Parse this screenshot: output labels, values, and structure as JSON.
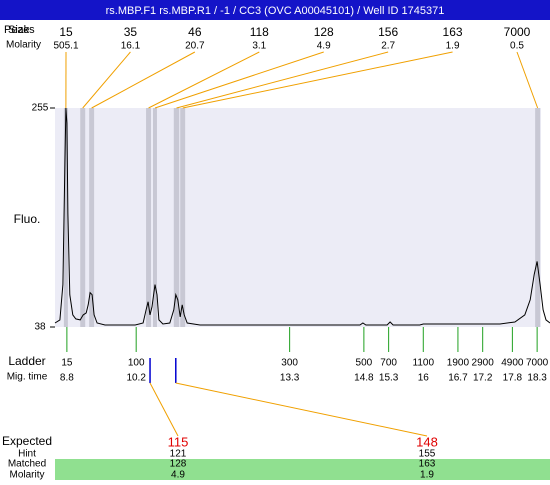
{
  "header": {
    "title": "rs.MBP.F1  rs.MBP.R1  / -1  / CC3 (OVC A00045101) / Well ID 1745371"
  },
  "chart_data": {
    "type": "line",
    "x": [
      8.56,
      8.66,
      8.72,
      8.76,
      8.78,
      8.8,
      8.82,
      8.86,
      8.92,
      8.98,
      9.07,
      9.13,
      9.19,
      9.23,
      9.27,
      9.31,
      9.35,
      9.41,
      9.57,
      9.87,
      10.18,
      10.34,
      10.4,
      10.44,
      10.48,
      10.52,
      10.58,
      10.62,
      10.66,
      10.74,
      10.88,
      10.96,
      11.0,
      11.04,
      11.09,
      11.13,
      11.17,
      11.23,
      11.49,
      12.5,
      13.51,
      14.72,
      14.78,
      14.84,
      15.27,
      15.33,
      15.39,
      15.93,
      16.0,
      16.64,
      17.15,
      17.55,
      17.85,
      18.05,
      18.16,
      18.24,
      18.3,
      18.36,
      18.42,
      18.48,
      18.56
    ],
    "values": [
      42,
      45,
      80,
      200,
      255,
      240,
      150,
      70,
      50,
      46,
      45,
      50,
      52,
      60,
      72,
      70,
      50,
      42,
      40,
      40,
      40,
      42,
      55,
      63,
      50,
      58,
      80,
      70,
      45,
      41,
      42,
      55,
      70,
      65,
      48,
      60,
      50,
      42,
      40,
      40,
      40,
      40,
      42,
      40,
      40,
      43,
      40,
      40,
      41,
      41,
      41,
      41,
      43,
      50,
      65,
      90,
      103,
      80,
      55,
      45,
      42
    ],
    "color": "#000000",
    "xlim": [
      8.56,
      18.56
    ],
    "ylim": [
      38,
      255
    ],
    "yticks": [
      38,
      255
    ],
    "ylabel": "Fluo."
  },
  "peaks": {
    "size_label": "Size",
    "peak_label": "Peaks",
    "molarity_label": "Molarity",
    "items": [
      {
        "size": 15,
        "molarity": 505.1,
        "range": [
          8.74,
          8.82
        ]
      },
      {
        "size": 35,
        "molarity": 16.1,
        "range": [
          9.07,
          9.17
        ]
      },
      {
        "size": 46,
        "molarity": 20.7,
        "range": [
          9.25,
          9.35
        ]
      },
      {
        "size": 118,
        "molarity": 3.1,
        "range": [
          10.4,
          10.5
        ]
      },
      {
        "size": 128,
        "molarity": 4.9,
        "range": [
          10.54,
          10.62
        ]
      },
      {
        "size": 156,
        "molarity": 2.7,
        "range": [
          10.96,
          11.07
        ]
      },
      {
        "size": 163,
        "molarity": 1.9,
        "range": [
          11.09,
          11.19
        ]
      },
      {
        "size": 7000,
        "molarity": 0.5,
        "range": [
          18.26,
          18.36
        ]
      }
    ]
  },
  "ladder": {
    "label": "Ladder",
    "time_label": "Mig. time",
    "items": [
      {
        "size": 15,
        "time": 8.8
      },
      {
        "size": 100,
        "time": 10.2
      },
      {
        "size": 300,
        "time": 13.3
      },
      {
        "size": 500,
        "time": 14.8
      },
      {
        "size": 700,
        "time": 15.3
      },
      {
        "size": 1100,
        "time": 16
      },
      {
        "size": 1900,
        "time": 16.7
      },
      {
        "size": 2900,
        "time": 17.2
      },
      {
        "size": 4900,
        "time": 17.8
      },
      {
        "size": 7000,
        "time": 18.3
      }
    ]
  },
  "expected": {
    "label": "Expected",
    "hint_label": "Hint",
    "matched_label": "Matched",
    "molarity_label": "Molarity",
    "items": [
      {
        "value": 115,
        "time": 10.48,
        "hint": 121,
        "matched": 128,
        "molarity": 4.9
      },
      {
        "value": 148,
        "time": 11.0,
        "hint": 155,
        "matched": 163,
        "molarity": 1.9
      }
    ]
  }
}
